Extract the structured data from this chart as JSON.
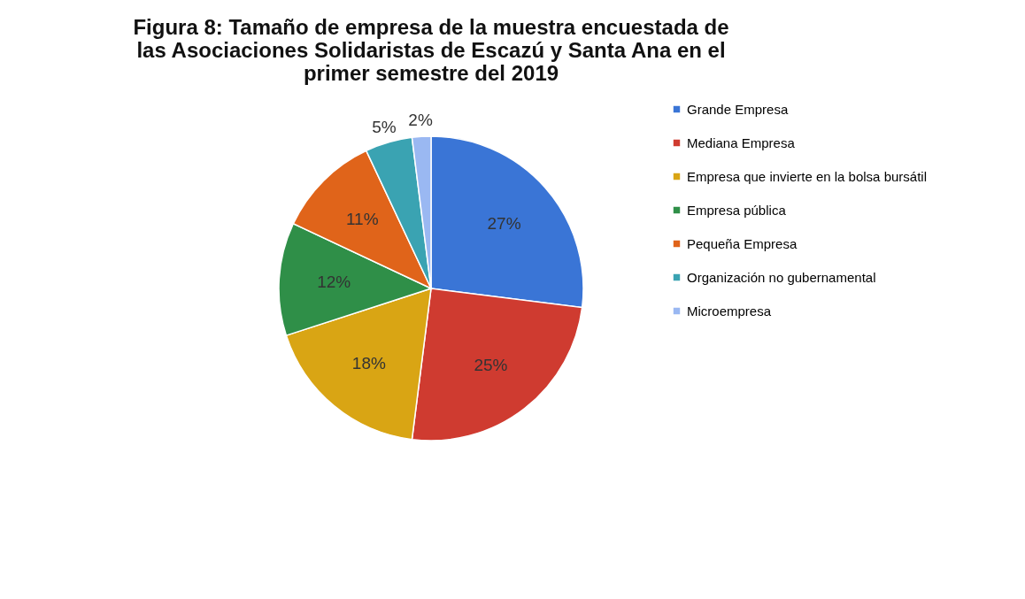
{
  "chart_data": {
    "type": "pie",
    "title": "Figura 8: Tamaño de empresa de la muestra encuestada de las Asociaciones Solidaristas de Escazú  y Santa Ana en el primer semestre del 2019",
    "categories": [
      "Grande Empresa",
      "Mediana Empresa",
      "Empresa que invierte en la bolsa bursátil",
      "Empresa pública",
      "Pequeña Empresa",
      "Organización no gubernamental",
      "Microempresa"
    ],
    "values": [
      27,
      25,
      18,
      12,
      11,
      5,
      2
    ],
    "colors": [
      "#3a75d6",
      "#cf3b30",
      "#d9a514",
      "#2f8f48",
      "#e0641a",
      "#3aa3b2",
      "#9ab8f2"
    ],
    "value_labels": [
      "27%",
      "25%",
      "18%",
      "12%",
      "11%",
      "5%",
      "2%"
    ],
    "legend": "right"
  }
}
